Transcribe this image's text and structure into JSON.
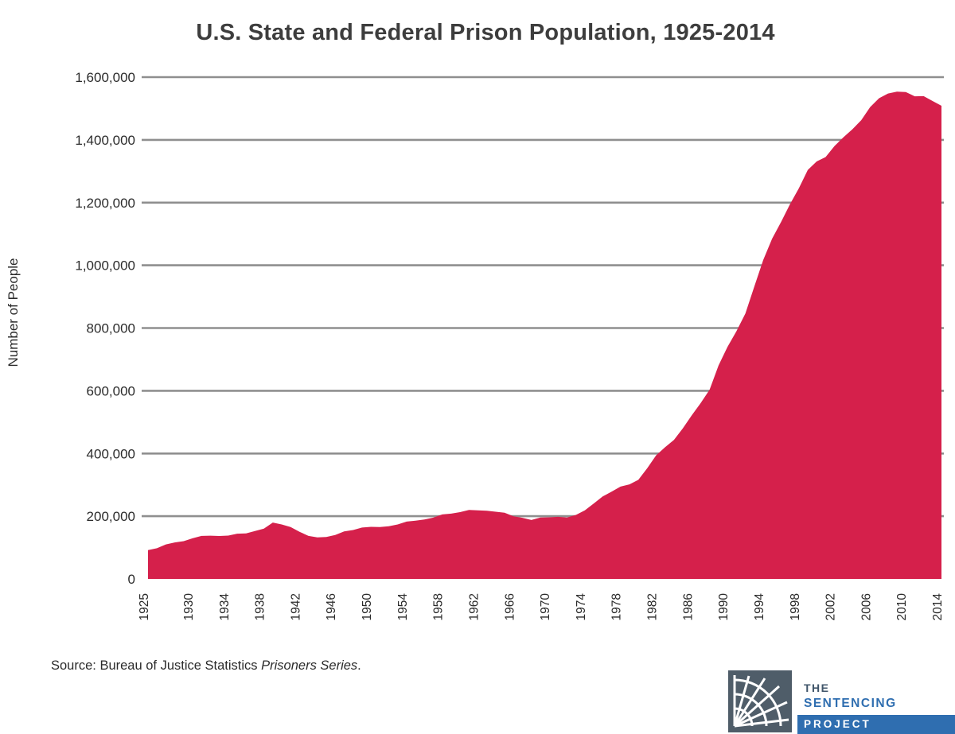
{
  "title": "U.S. State and Federal Prison Population, 1925-2014",
  "y_axis_label": "Number of People",
  "source": {
    "prefix": "Source: Bureau of Justice Statistics ",
    "italic": "Prisoners Series",
    "suffix": "."
  },
  "logo": {
    "line1": "THE",
    "line2": "SENTENCING",
    "line3": "PROJECT"
  },
  "colors": {
    "area": "#d5204b",
    "gridline": "#8f8f8f",
    "text": "#2b2b2b",
    "logo_blue": "#2f6eb0",
    "logo_square": "#4f5d69"
  },
  "chart_data": {
    "type": "area",
    "title": "U.S. State and Federal Prison Population, 1925-2014",
    "xlabel": "",
    "ylabel": "Number of People",
    "ylim": [
      0,
      1600000
    ],
    "grid": "horizontal",
    "legend": "none",
    "y_ticks": [
      0,
      200000,
      400000,
      600000,
      800000,
      1000000,
      1200000,
      1400000,
      1600000
    ],
    "x_tick_years": [
      1925,
      1930,
      1934,
      1938,
      1942,
      1946,
      1950,
      1954,
      1958,
      1962,
      1966,
      1970,
      1974,
      1978,
      1982,
      1986,
      1990,
      1994,
      1998,
      2002,
      2006,
      2010,
      2014
    ],
    "years": [
      1925,
      1926,
      1927,
      1928,
      1929,
      1930,
      1931,
      1932,
      1933,
      1934,
      1935,
      1936,
      1937,
      1938,
      1939,
      1940,
      1941,
      1942,
      1943,
      1944,
      1945,
      1946,
      1947,
      1948,
      1949,
      1950,
      1951,
      1952,
      1953,
      1954,
      1955,
      1956,
      1957,
      1958,
      1959,
      1960,
      1961,
      1962,
      1963,
      1964,
      1965,
      1966,
      1967,
      1968,
      1969,
      1970,
      1971,
      1972,
      1973,
      1974,
      1975,
      1976,
      1977,
      1978,
      1979,
      1980,
      1981,
      1982,
      1983,
      1984,
      1985,
      1986,
      1987,
      1988,
      1989,
      1990,
      1991,
      1992,
      1993,
      1994,
      1995,
      1996,
      1997,
      1998,
      1999,
      2000,
      2001,
      2002,
      2003,
      2004,
      2005,
      2006,
      2007,
      2008,
      2009,
      2010,
      2011,
      2012,
      2013,
      2014
    ],
    "values": [
      91669,
      97991,
      109983,
      116390,
      120496,
      129453,
      137082,
      137997,
      136810,
      138316,
      144180,
      145038,
      152741,
      160285,
      179818,
      173706,
      165439,
      150384,
      137220,
      132456,
      133649,
      140079,
      151304,
      155977,
      163749,
      166123,
      165680,
      168233,
      173579,
      182901,
      185780,
      189565,
      195414,
      205643,
      208105,
      212953,
      220149,
      218830,
      217283,
      214336,
      210895,
      199654,
      194896,
      187914,
      196007,
      196429,
      198061,
      196092,
      204211,
      218466,
      240593,
      262833,
      278141,
      294396,
      301470,
      315974,
      353167,
      394374,
      419820,
      443398,
      480568,
      522084,
      560812,
      603732,
      680907,
      739980,
      789610,
      846277,
      932074,
      1016691,
      1085022,
      1137722,
      1194581,
      1245402,
      1304074,
      1331278,
      1345217,
      1380516,
      1408361,
      1433728,
      1462866,
      1504598,
      1532851,
      1547742,
      1553574,
      1552669,
      1538847,
      1539364,
      1523970,
      1508636
    ]
  }
}
